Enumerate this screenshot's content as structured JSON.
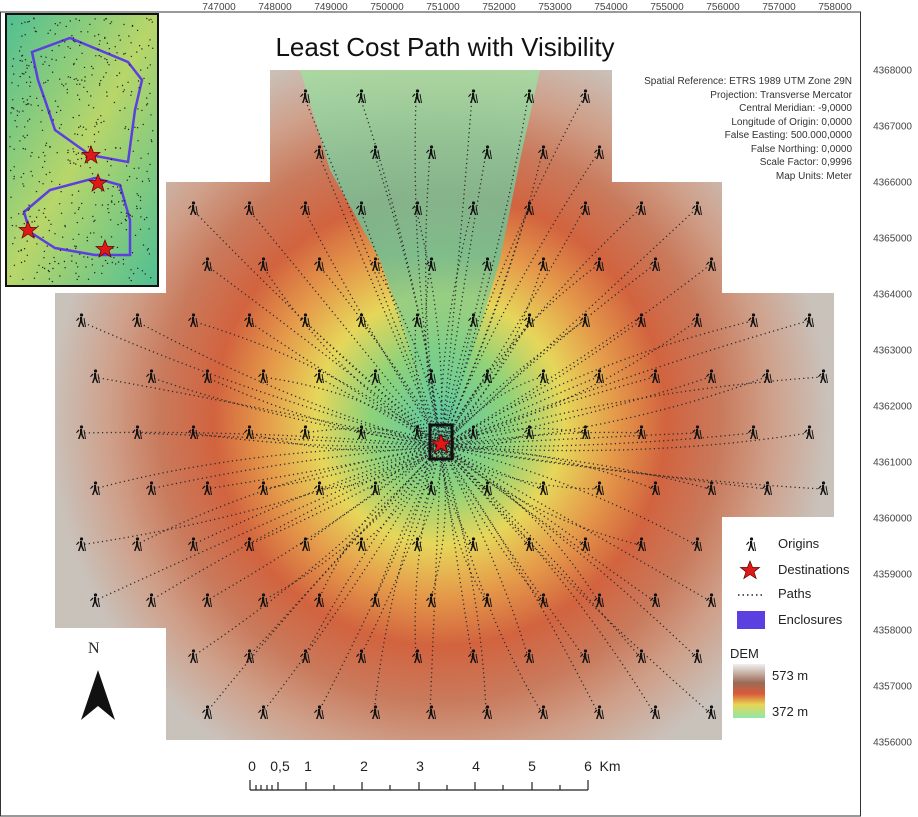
{
  "title": "Least Cost Path with Visibility",
  "x_ticks": [
    "747000",
    "748000",
    "749000",
    "750000",
    "751000",
    "752000",
    "753000",
    "754000",
    "755000",
    "756000",
    "757000",
    "758000"
  ],
  "y_ticks": [
    "4368000",
    "4367000",
    "4366000",
    "4365000",
    "4364000",
    "4363000",
    "4362000",
    "4361000",
    "4360000",
    "4359000",
    "4358000",
    "4357000",
    "4356000"
  ],
  "projection_info": [
    "Spatial Reference: ETRS 1989 UTM Zone 29N",
    "Projection: Transverse Mercator",
    "Central Meridian: -9,0000",
    "Longitude of Origin: 0,0000",
    "False Easting: 500.000,0000",
    "False Northing: 0,0000",
    "Scale Factor: 0,9996",
    "Map Units: Meter"
  ],
  "legend": {
    "origins": "Origins",
    "destinations": "Destinations",
    "paths": "Paths",
    "enclosures": "Enclosures",
    "dem_title": "DEM",
    "dem_max": "573 m",
    "dem_min": "372 m"
  },
  "scale_bar": {
    "labels": [
      "0",
      "0,5",
      "1",
      "2",
      "3",
      "4",
      "5",
      "6"
    ],
    "unit": "Km"
  },
  "north_label": "N",
  "colors": {
    "dem_high": "#e8e8e8",
    "dem_upper": "#c86a50",
    "dem_mid": "#e7d25a",
    "dem_low": "#6cc98c",
    "enclosure": "#5b3fe0",
    "destination": "#e01818"
  }
}
